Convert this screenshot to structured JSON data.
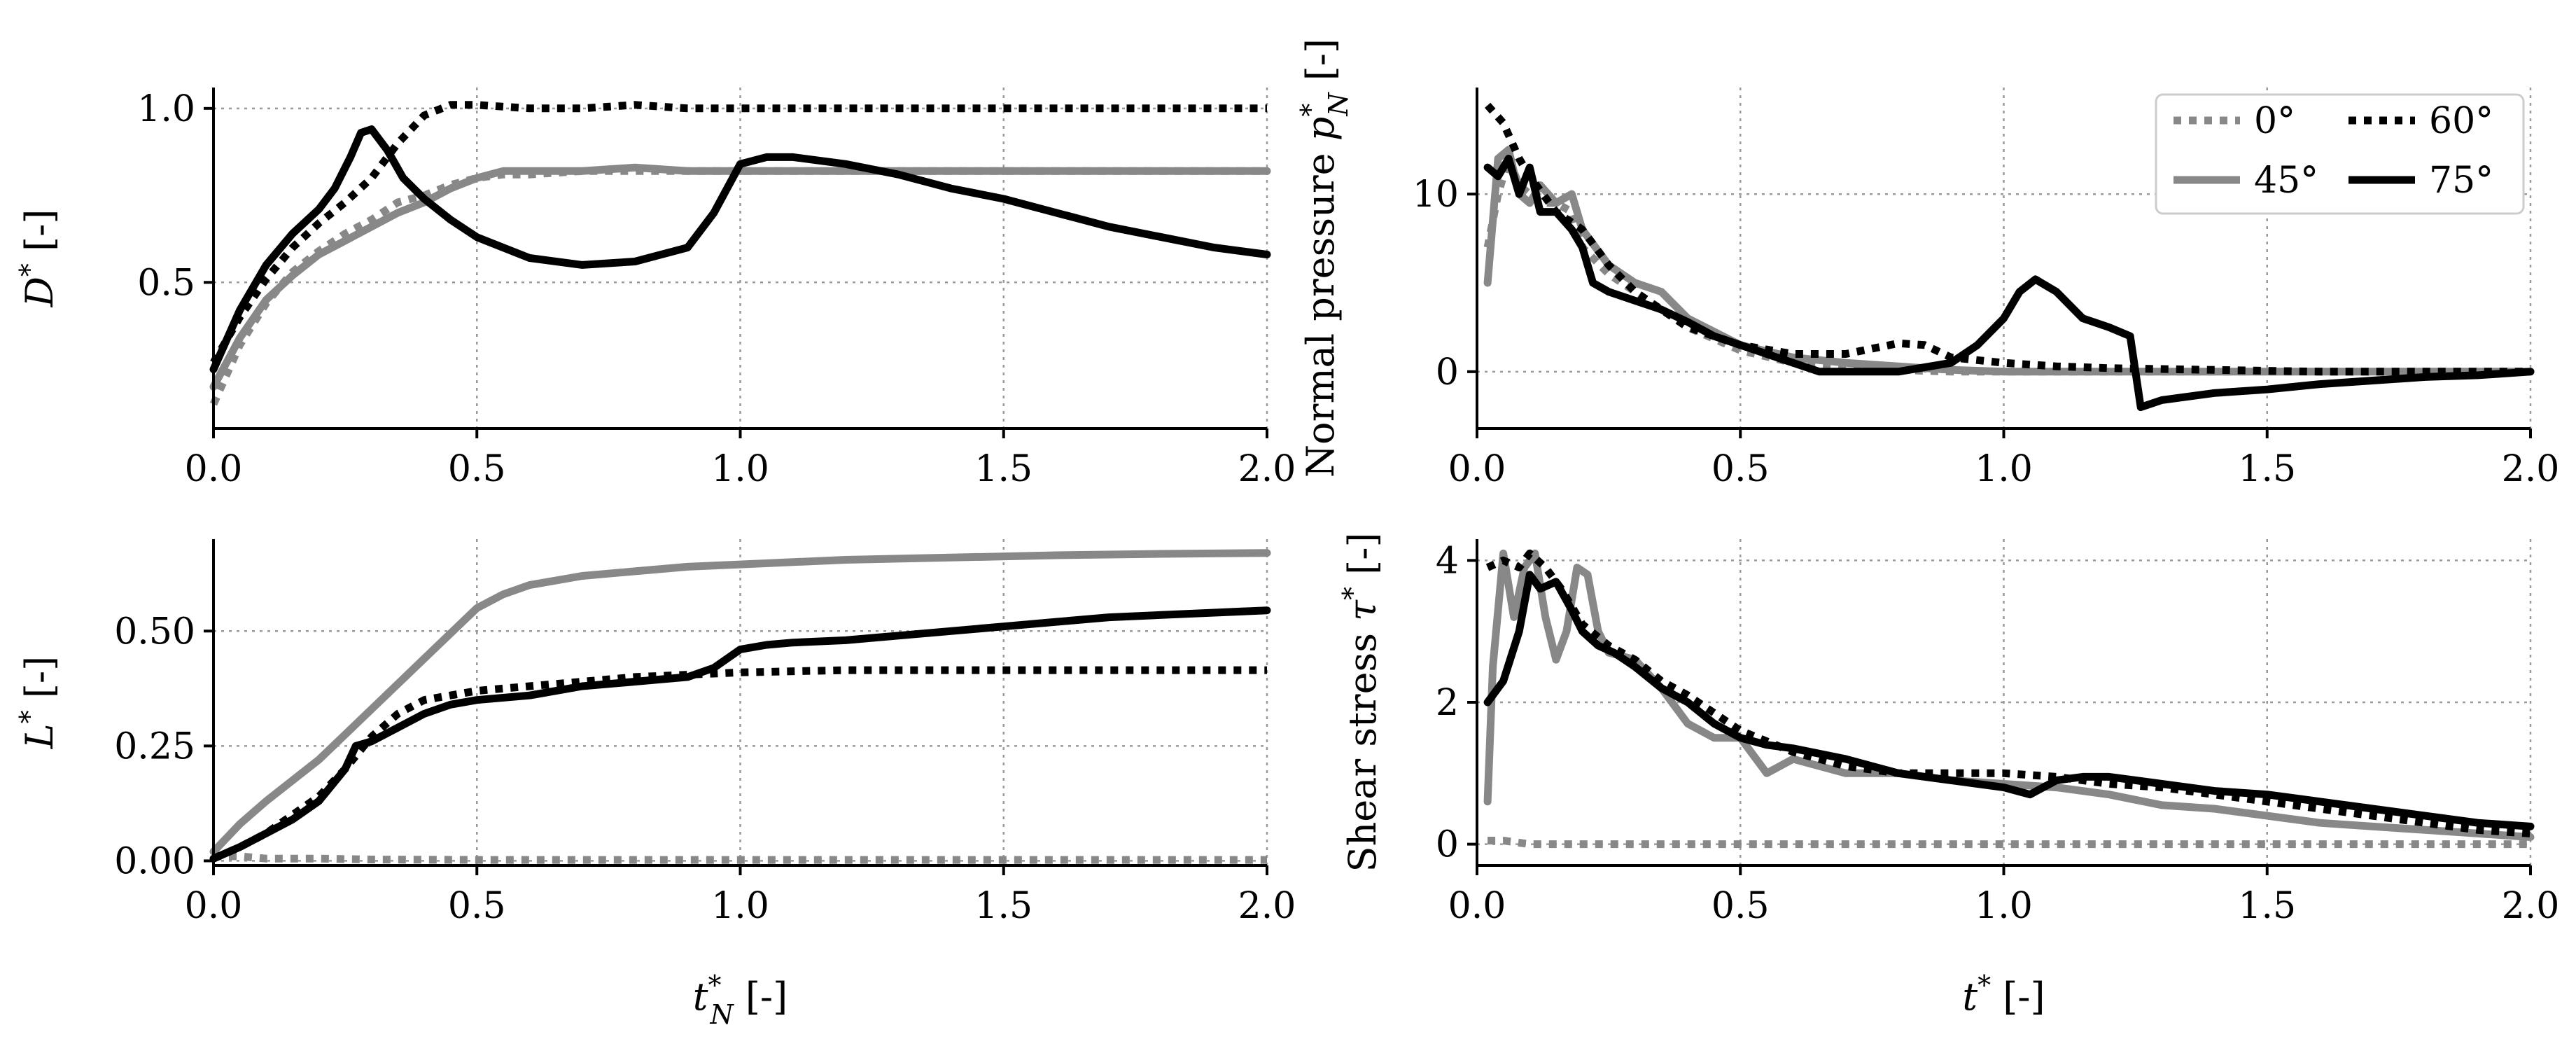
{
  "figure": {
    "legend": {
      "entries": [
        {
          "label": "0°",
          "series_key": "s0"
        },
        {
          "label": "60°",
          "series_key": "s60"
        },
        {
          "label": "45°",
          "series_key": "s45"
        },
        {
          "label": "75°",
          "series_key": "s75"
        }
      ]
    },
    "series_styles": {
      "s0": {
        "color": "#888888",
        "dash": "dotted"
      },
      "s45": {
        "color": "#888888",
        "dash": "solid"
      },
      "s60": {
        "color": "#000000",
        "dash": "dotted"
      },
      "s75": {
        "color": "#000000",
        "dash": "solid"
      }
    }
  },
  "chart_data": [
    {
      "id": "panel-drag",
      "type": "line",
      "xlabel": "",
      "ylabel_main": "D",
      "ylabel_sup": "*",
      "ylabel_tail": " [-]",
      "xlim": [
        0,
        2.0
      ],
      "ylim": [
        0.08,
        1.06
      ],
      "xticks": [
        0,
        0.5,
        1.0,
        1.5,
        2.0
      ],
      "xtick_labels": [
        "0.0",
        "0.5",
        "1.0",
        "1.5",
        "2.0"
      ],
      "yticks": [
        0.5,
        1.0
      ],
      "ytick_labels": [
        "0.5",
        "1.0"
      ],
      "series": [
        {
          "key": "s0",
          "name": "0°",
          "x": [
            0,
            0.05,
            0.1,
            0.15,
            0.2,
            0.25,
            0.3,
            0.35,
            0.4,
            0.45,
            0.5,
            0.55,
            0.6,
            0.7,
            0.8,
            0.9,
            1.0,
            1.2,
            1.4,
            1.6,
            1.8,
            2.0
          ],
          "y": [
            0.15,
            0.32,
            0.44,
            0.53,
            0.59,
            0.64,
            0.68,
            0.73,
            0.75,
            0.78,
            0.8,
            0.81,
            0.81,
            0.82,
            0.82,
            0.82,
            0.82,
            0.82,
            0.82,
            0.82,
            0.82,
            0.82
          ]
        },
        {
          "key": "s45",
          "name": "45°",
          "x": [
            0,
            0.05,
            0.1,
            0.15,
            0.2,
            0.25,
            0.3,
            0.35,
            0.4,
            0.45,
            0.5,
            0.55,
            0.6,
            0.7,
            0.8,
            0.9,
            1.0,
            1.2,
            1.4,
            1.6,
            1.8,
            2.0
          ],
          "y": [
            0.2,
            0.34,
            0.45,
            0.52,
            0.58,
            0.62,
            0.66,
            0.7,
            0.73,
            0.77,
            0.8,
            0.82,
            0.82,
            0.82,
            0.83,
            0.82,
            0.82,
            0.82,
            0.82,
            0.82,
            0.82,
            0.82
          ]
        },
        {
          "key": "s60",
          "name": "60°",
          "x": [
            0,
            0.05,
            0.1,
            0.15,
            0.2,
            0.25,
            0.3,
            0.35,
            0.4,
            0.45,
            0.5,
            0.6,
            0.7,
            0.8,
            0.9,
            1.0,
            1.2,
            1.4,
            1.6,
            1.8,
            2.0
          ],
          "y": [
            0.27,
            0.4,
            0.51,
            0.6,
            0.67,
            0.73,
            0.8,
            0.9,
            0.98,
            1.01,
            1.01,
            1.0,
            1.0,
            1.01,
            1.0,
            1.0,
            1.0,
            1.0,
            1.0,
            1.0,
            1.0
          ]
        },
        {
          "key": "s75",
          "name": "75°",
          "x": [
            0,
            0.05,
            0.1,
            0.15,
            0.2,
            0.23,
            0.26,
            0.28,
            0.3,
            0.33,
            0.36,
            0.4,
            0.45,
            0.5,
            0.55,
            0.6,
            0.7,
            0.8,
            0.9,
            0.95,
            1.0,
            1.05,
            1.1,
            1.2,
            1.3,
            1.4,
            1.5,
            1.6,
            1.7,
            1.8,
            1.9,
            2.0
          ],
          "y": [
            0.25,
            0.42,
            0.55,
            0.64,
            0.71,
            0.77,
            0.86,
            0.93,
            0.94,
            0.88,
            0.8,
            0.74,
            0.68,
            0.63,
            0.6,
            0.57,
            0.55,
            0.56,
            0.6,
            0.7,
            0.84,
            0.86,
            0.86,
            0.84,
            0.81,
            0.77,
            0.74,
            0.7,
            0.66,
            0.63,
            0.6,
            0.58
          ]
        }
      ]
    },
    {
      "id": "panel-normal-pressure",
      "type": "line",
      "xlabel": "",
      "ylabel_main": "Normal pressure p",
      "ylabel_sup": "*",
      "ylabel_sub": "N",
      "ylabel_tail": " [-]",
      "xlim": [
        0,
        2.0
      ],
      "ylim": [
        -3.2,
        16
      ],
      "xticks": [
        0,
        0.5,
        1.0,
        1.5,
        2.0
      ],
      "xtick_labels": [
        "0.0",
        "0.5",
        "1.0",
        "1.5",
        "2.0"
      ],
      "yticks": [
        0,
        10
      ],
      "ytick_labels": [
        "0",
        "10"
      ],
      "series": [
        {
          "key": "s0",
          "name": "0°",
          "x": [
            0.02,
            0.04,
            0.06,
            0.08,
            0.1,
            0.12,
            0.15,
            0.18,
            0.2,
            0.25,
            0.3,
            0.35,
            0.4,
            0.5,
            0.6,
            0.7,
            0.8,
            0.9,
            1.0,
            1.2,
            1.4,
            1.6,
            1.8,
            2.0
          ],
          "y": [
            7,
            10,
            12,
            10.5,
            10,
            9.5,
            9.5,
            9,
            7,
            5.5,
            4.5,
            3.5,
            2.5,
            1.2,
            0.5,
            0.3,
            0.1,
            0,
            0,
            0,
            0,
            0,
            0,
            0
          ]
        },
        {
          "key": "s45",
          "name": "45°",
          "x": [
            0.02,
            0.04,
            0.06,
            0.08,
            0.1,
            0.12,
            0.15,
            0.18,
            0.2,
            0.25,
            0.3,
            0.35,
            0.4,
            0.5,
            0.6,
            0.7,
            0.8,
            0.9,
            1.0,
            1.2,
            1.4,
            1.6,
            1.8,
            2.0
          ],
          "y": [
            5,
            12,
            12.5,
            10,
            9.5,
            10.5,
            9.5,
            10,
            8,
            6,
            5,
            4.5,
            3,
            1.5,
            0.8,
            0.5,
            0.3,
            0.1,
            0,
            0,
            0,
            0,
            0,
            0
          ]
        },
        {
          "key": "s60",
          "name": "60°",
          "x": [
            0.02,
            0.05,
            0.08,
            0.1,
            0.15,
            0.2,
            0.25,
            0.3,
            0.35,
            0.4,
            0.5,
            0.6,
            0.7,
            0.8,
            0.85,
            0.9,
            1.0,
            1.1,
            1.2,
            1.4,
            1.6,
            1.8,
            2.0
          ],
          "y": [
            15,
            14,
            12,
            11,
            9,
            8,
            6,
            4.5,
            3.5,
            2.5,
            1.5,
            1,
            1,
            1.6,
            1.5,
            0.8,
            0.5,
            0.3,
            0.2,
            0.1,
            0,
            0,
            0
          ]
        },
        {
          "key": "s75",
          "name": "75°",
          "x": [
            0.02,
            0.04,
            0.06,
            0.08,
            0.1,
            0.12,
            0.15,
            0.18,
            0.2,
            0.22,
            0.25,
            0.3,
            0.35,
            0.4,
            0.45,
            0.5,
            0.6,
            0.65,
            0.7,
            0.8,
            0.9,
            0.95,
            1.0,
            1.03,
            1.06,
            1.1,
            1.15,
            1.2,
            1.24,
            1.26,
            1.3,
            1.4,
            1.5,
            1.6,
            1.7,
            1.8,
            1.9,
            2.0
          ],
          "y": [
            11.5,
            11,
            12,
            10,
            11.5,
            9,
            9,
            8,
            7,
            5,
            4.5,
            4,
            3.5,
            2.8,
            2,
            1.5,
            0.5,
            0,
            0,
            0,
            0.5,
            1.5,
            3,
            4.5,
            5.2,
            4.5,
            3,
            2.5,
            2,
            -2,
            -1.6,
            -1.2,
            -1,
            -0.7,
            -0.5,
            -0.3,
            -0.2,
            0
          ]
        }
      ]
    },
    {
      "id": "panel-lift",
      "type": "line",
      "xlabel_main": "t",
      "xlabel_sup": "*",
      "xlabel_sub": "N",
      "xlabel_tail": " [-]",
      "ylabel_main": "L",
      "ylabel_sup": "*",
      "ylabel_tail": " [-]",
      "xlim": [
        0,
        2.0
      ],
      "ylim": [
        -0.01,
        0.7
      ],
      "xticks": [
        0,
        0.5,
        1.0,
        1.5,
        2.0
      ],
      "xtick_labels": [
        "0.0",
        "0.5",
        "1.0",
        "1.5",
        "2.0"
      ],
      "yticks": [
        0,
        0.25,
        0.5
      ],
      "ytick_labels": [
        "0.00",
        "0.25",
        "0.50"
      ],
      "series": [
        {
          "key": "s0",
          "name": "0°",
          "x": [
            0,
            0.05,
            0.1,
            0.2,
            0.3,
            0.5,
            0.8,
            1.0,
            1.5,
            2.0
          ],
          "y": [
            0.01,
            0.01,
            0.005,
            0.005,
            0.003,
            0.002,
            0.002,
            0.002,
            0.002,
            0.002
          ]
        },
        {
          "key": "s45",
          "name": "45°",
          "x": [
            0,
            0.05,
            0.1,
            0.2,
            0.3,
            0.4,
            0.5,
            0.55,
            0.6,
            0.7,
            0.8,
            0.9,
            1.0,
            1.2,
            1.4,
            1.6,
            1.8,
            2.0
          ],
          "y": [
            0.02,
            0.08,
            0.13,
            0.22,
            0.33,
            0.44,
            0.55,
            0.58,
            0.6,
            0.62,
            0.63,
            0.64,
            0.645,
            0.655,
            0.66,
            0.665,
            0.668,
            0.67
          ]
        },
        {
          "key": "s60",
          "name": "60°",
          "x": [
            0,
            0.05,
            0.1,
            0.15,
            0.2,
            0.25,
            0.3,
            0.35,
            0.4,
            0.5,
            0.6,
            0.7,
            0.8,
            0.9,
            1.0,
            1.2,
            1.4,
            1.6,
            1.8,
            2.0
          ],
          "y": [
            0.005,
            0.03,
            0.06,
            0.1,
            0.14,
            0.2,
            0.27,
            0.32,
            0.35,
            0.37,
            0.38,
            0.39,
            0.4,
            0.405,
            0.41,
            0.415,
            0.415,
            0.415,
            0.415,
            0.415
          ]
        },
        {
          "key": "s75",
          "name": "75°",
          "x": [
            0,
            0.05,
            0.1,
            0.15,
            0.2,
            0.25,
            0.27,
            0.3,
            0.35,
            0.4,
            0.45,
            0.5,
            0.6,
            0.7,
            0.8,
            0.9,
            0.95,
            1.0,
            1.05,
            1.1,
            1.2,
            1.3,
            1.4,
            1.5,
            1.6,
            1.7,
            1.8,
            1.9,
            2.0
          ],
          "y": [
            0.005,
            0.03,
            0.06,
            0.09,
            0.13,
            0.2,
            0.25,
            0.26,
            0.29,
            0.32,
            0.34,
            0.35,
            0.36,
            0.38,
            0.39,
            0.4,
            0.42,
            0.46,
            0.47,
            0.475,
            0.48,
            0.49,
            0.5,
            0.51,
            0.52,
            0.53,
            0.535,
            0.54,
            0.545
          ]
        }
      ]
    },
    {
      "id": "panel-shear-stress",
      "type": "line",
      "xlabel_main": "t",
      "xlabel_sup": "*",
      "xlabel_tail": " [-]",
      "ylabel_main": "Shear stress τ",
      "ylabel_sup": "*",
      "ylabel_tail": " [-]",
      "xlim": [
        0,
        2.0
      ],
      "ylim": [
        -0.3,
        4.3
      ],
      "xticks": [
        0,
        0.5,
        1.0,
        1.5,
        2.0
      ],
      "xtick_labels": [
        "0.0",
        "0.5",
        "1.0",
        "1.5",
        "2.0"
      ],
      "yticks": [
        0,
        2,
        4
      ],
      "ytick_labels": [
        "0",
        "2",
        "4"
      ],
      "series": [
        {
          "key": "s0",
          "name": "0°",
          "x": [
            0.02,
            0.05,
            0.1,
            0.2,
            0.5,
            1.0,
            1.5,
            2.0
          ],
          "y": [
            0.05,
            0.05,
            0,
            0,
            0,
            0,
            0,
            0
          ]
        },
        {
          "key": "s45",
          "name": "45°",
          "x": [
            0.02,
            0.03,
            0.05,
            0.07,
            0.09,
            0.11,
            0.13,
            0.15,
            0.17,
            0.19,
            0.21,
            0.23,
            0.25,
            0.3,
            0.35,
            0.4,
            0.45,
            0.5,
            0.55,
            0.6,
            0.7,
            0.8,
            0.9,
            1.0,
            1.1,
            1.2,
            1.3,
            1.4,
            1.5,
            1.6,
            1.7,
            1.8,
            1.9,
            2.0
          ],
          "y": [
            0.6,
            2.5,
            4.1,
            3.2,
            3.9,
            4.1,
            3.2,
            2.6,
            3.0,
            3.9,
            3.8,
            3.0,
            2.7,
            2.6,
            2.2,
            1.7,
            1.5,
            1.5,
            1.0,
            1.2,
            1.0,
            1.0,
            0.9,
            0.85,
            0.8,
            0.7,
            0.55,
            0.5,
            0.4,
            0.3,
            0.25,
            0.2,
            0.15,
            0.1
          ]
        },
        {
          "key": "s60",
          "name": "60°",
          "x": [
            0.02,
            0.05,
            0.08,
            0.1,
            0.13,
            0.16,
            0.2,
            0.25,
            0.3,
            0.35,
            0.4,
            0.5,
            0.6,
            0.7,
            0.8,
            0.9,
            1.0,
            1.1,
            1.2,
            1.3,
            1.4,
            1.5,
            1.6,
            1.7,
            1.8,
            1.9,
            2.0
          ],
          "y": [
            3.9,
            4.0,
            3.9,
            4.1,
            3.9,
            3.6,
            3.1,
            2.8,
            2.6,
            2.3,
            2.1,
            1.6,
            1.3,
            1.1,
            1.0,
            1.0,
            1.0,
            0.95,
            0.85,
            0.8,
            0.7,
            0.6,
            0.5,
            0.4,
            0.3,
            0.2,
            0.15
          ]
        },
        {
          "key": "s75",
          "name": "75°",
          "x": [
            0.02,
            0.05,
            0.08,
            0.1,
            0.12,
            0.15,
            0.18,
            0.2,
            0.23,
            0.26,
            0.3,
            0.35,
            0.4,
            0.45,
            0.5,
            0.55,
            0.6,
            0.7,
            0.8,
            0.9,
            1.0,
            1.05,
            1.1,
            1.15,
            1.2,
            1.3,
            1.4,
            1.5,
            1.6,
            1.7,
            1.8,
            1.9,
            2.0
          ],
          "y": [
            2.0,
            2.3,
            3.0,
            3.8,
            3.6,
            3.7,
            3.3,
            3.0,
            2.8,
            2.7,
            2.5,
            2.2,
            2.0,
            1.7,
            1.5,
            1.4,
            1.35,
            1.2,
            1.0,
            0.9,
            0.8,
            0.7,
            0.9,
            0.95,
            0.95,
            0.85,
            0.75,
            0.7,
            0.6,
            0.5,
            0.4,
            0.3,
            0.25
          ]
        }
      ]
    }
  ]
}
